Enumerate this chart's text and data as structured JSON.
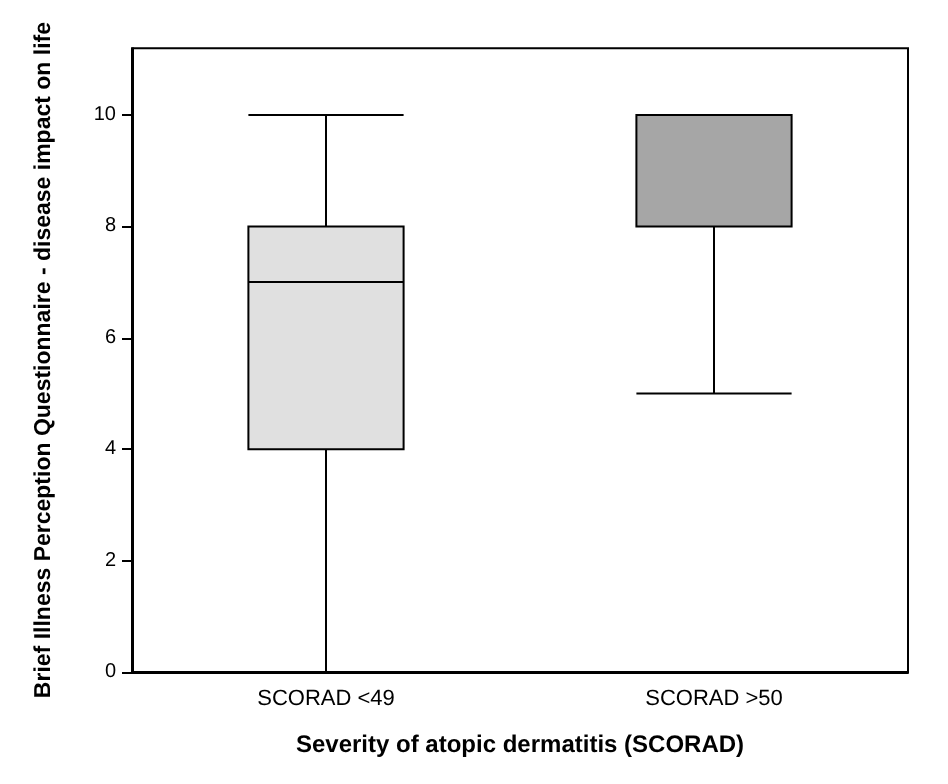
{
  "chart_data": {
    "type": "box",
    "xlabel": "Severity of atopic dermatitis (SCORAD)",
    "ylabel": "Brief Illness Perception Questionnaire - disease impact on life",
    "categories": [
      "SCORAD <49",
      "SCORAD >50"
    ],
    "boxes": [
      {
        "low": 0,
        "q1": 4,
        "median": 7,
        "q3": 8,
        "high": 10
      },
      {
        "low": 5,
        "q1": 8,
        "median": 8,
        "q3": 10,
        "high": 10
      }
    ],
    "colors": [
      "#e0e0e0",
      "#a6a6a6"
    ],
    "ylim": [
      0,
      11.2
    ],
    "yticks": [
      0,
      2,
      4,
      6,
      8,
      10
    ]
  }
}
